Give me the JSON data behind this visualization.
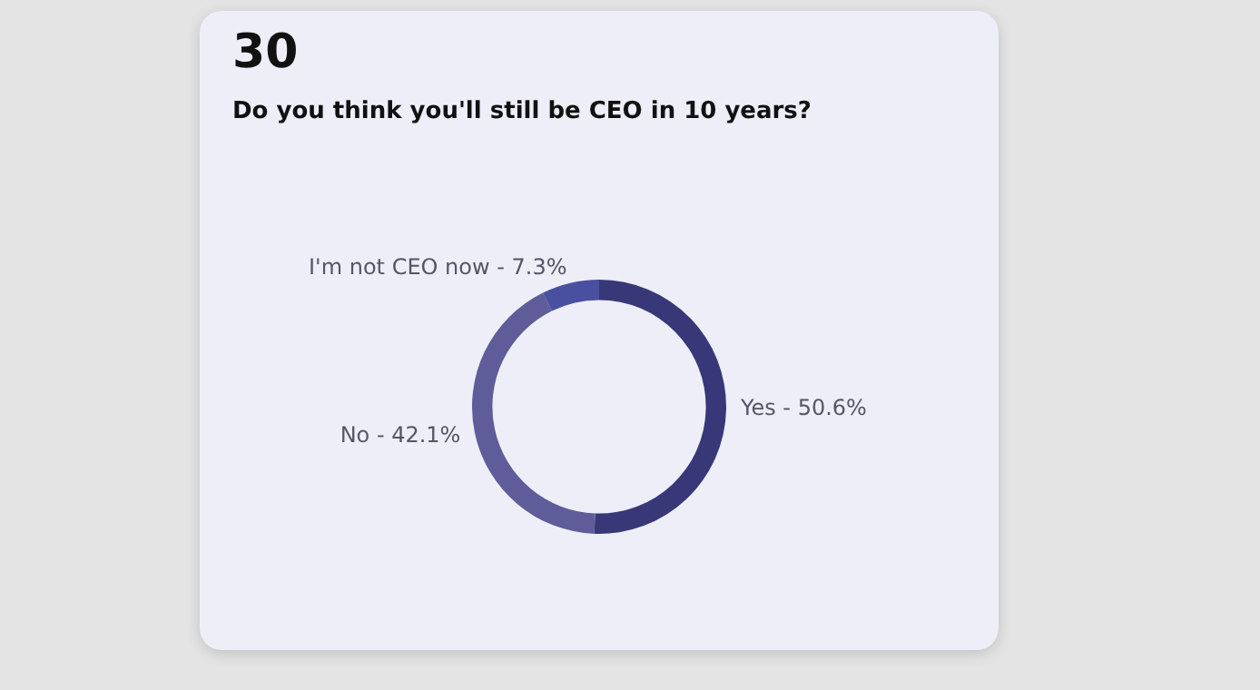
{
  "chart_data": {
    "type": "donut",
    "title": "30",
    "subtitle": "Do you think you'll still be CEO in 10 years?",
    "categories": [
      "Yes",
      "No",
      "I'm not CEO now"
    ],
    "values": [
      50.6,
      42.1,
      7.3
    ],
    "colors": [
      "#383878",
      "#5f5c9a",
      "#4a50a0"
    ],
    "value_labels": [
      "50.6%",
      "42.1%",
      "7.3%"
    ],
    "legend": false
  }
}
